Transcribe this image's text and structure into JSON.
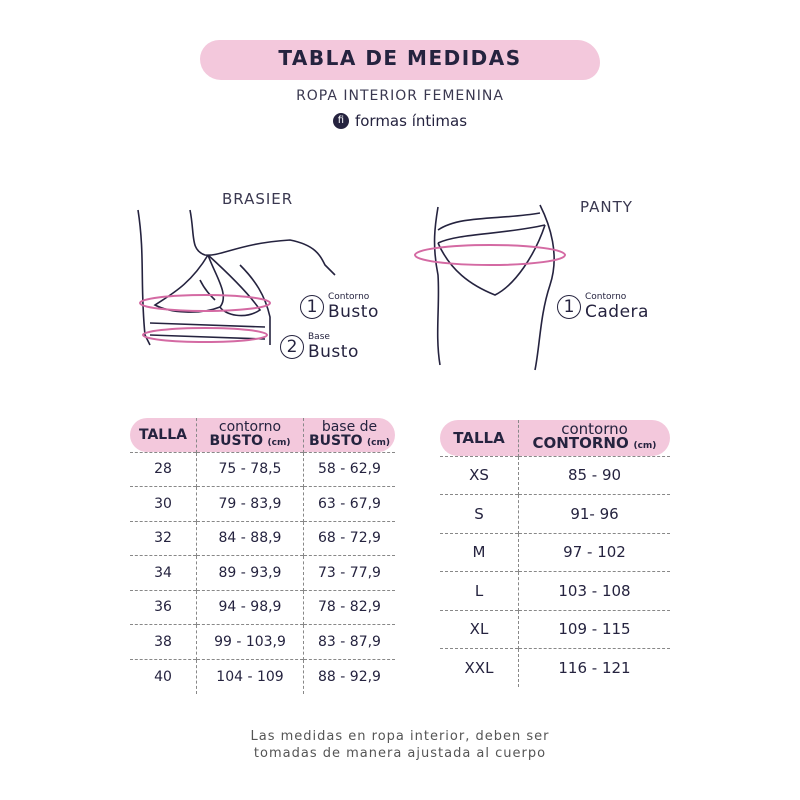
{
  "header": {
    "title": "TABLA DE MEDIDAS",
    "subtitle": "ROPA INTERIOR FEMENINA",
    "brand": "formas íntimas",
    "brand_logo": "fi"
  },
  "brasier": {
    "label": "BRASIER",
    "m1_num": "1",
    "m1_small": "Contorno",
    "m1_big": "Busto",
    "m2_num": "2",
    "m2_small": "Base",
    "m2_big": "Busto"
  },
  "panty": {
    "label": "PANTY",
    "m1_num": "1",
    "m1_small": "Contorno",
    "m1_big": "Cadera"
  },
  "bra_table": {
    "headers": [
      {
        "top": "TALLA",
        "bold": "",
        "unit": ""
      },
      {
        "top": "contorno",
        "bold": "BUSTO",
        "unit": "(cm)"
      },
      {
        "top": "base de",
        "bold": "BUSTO",
        "unit": "(cm)"
      }
    ],
    "rows": [
      [
        "28",
        "75 - 78,5",
        "58 -  62,9"
      ],
      [
        "30",
        "79 - 83,9",
        "63 -  67,9"
      ],
      [
        "32",
        "84 - 88,9",
        "68 -  72,9"
      ],
      [
        "34",
        "89 - 93,9",
        "73 -  77,9"
      ],
      [
        "36",
        "94 - 98,9",
        "78 -  82,9"
      ],
      [
        "38",
        "99 - 103,9",
        "83 -  87,9"
      ],
      [
        "40",
        "104 - 109",
        "88 -  92,9"
      ]
    ]
  },
  "panty_table": {
    "headers": [
      {
        "top": "TALLA",
        "bold": "",
        "unit": ""
      },
      {
        "top": "contorno",
        "bold": "CONTORNO",
        "unit": "(cm)"
      }
    ],
    "rows": [
      [
        "XS",
        "85 - 90"
      ],
      [
        "S",
        "91- 96"
      ],
      [
        "M",
        "97 - 102"
      ],
      [
        "L",
        "103 - 108"
      ],
      [
        "XL",
        "109 - 115"
      ],
      [
        "XXL",
        "116 - 121"
      ]
    ]
  },
  "footer": {
    "line1": "Las medidas en ropa interior, deben ser",
    "line2": "tomadas de manera ajustada al cuerpo"
  },
  "colors": {
    "accent": "#f3c8dc",
    "ring": "#d46aa3",
    "text": "#25233f"
  }
}
